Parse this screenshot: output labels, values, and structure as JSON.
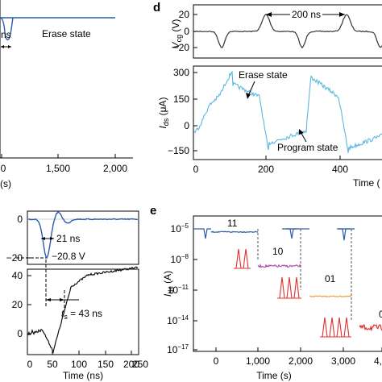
{
  "chart_data": [
    {
      "panel": "",
      "type": "line",
      "xticks": [
        "0",
        "1,500",
        "2,000"
      ],
      "xlabel": "(s)",
      "annotations": {
        "state": "Erase state",
        "width": "ns"
      },
      "colors": {
        "trace": "#2b5ca8"
      }
    },
    {
      "panel": "d",
      "type": "line",
      "top": {
        "ylabel_main": "V",
        "ylabel_sub": "cg",
        "ylabel_unit": " (V)",
        "yticks": [
          "20",
          "0",
          "−20"
        ],
        "ylim": [
          -25,
          28
        ],
        "period_label": "200 ns",
        "pulse_times": [
          0,
          200,
          400
        ],
        "color": "#333333"
      },
      "bottom": {
        "ylabel_main": "I",
        "ylabel_sub": "ds",
        "ylabel_unit": " (μA)",
        "yticks": [
          "300",
          "150",
          "0",
          "−150"
        ],
        "ylim": [
          -190,
          330
        ],
        "xticks": [
          "0",
          "200",
          "400"
        ],
        "xlabel": "Time (",
        "erase_label": "Erase state",
        "program_label": "Program state",
        "color": "#5bb8e0"
      }
    },
    {
      "panel": "",
      "type": "line",
      "top": {
        "yticks": [
          "0",
          "−20"
        ],
        "pulse_width_label": "21 ns",
        "min_label": "−20.8 V",
        "color": "#2b5ca8"
      },
      "bottom": {
        "yticks": [
          "40",
          "20",
          "0"
        ],
        "xticks": [
          "0",
          "50",
          "100",
          "150",
          "200",
          "250"
        ],
        "xlabel": "Time (ns)",
        "ts_label_main": "t",
        "ts_label_sub": "s",
        "ts_label_value": " = 43 ns"
      }
    },
    {
      "panel": "e",
      "type": "line",
      "ylabel_main": "I",
      "ylabel_sub": "ds",
      "ylabel_unit": " (A)",
      "yticks": [
        {
          "base": "10",
          "exp": "−5"
        },
        {
          "base": "10",
          "exp": "−8"
        },
        {
          "base": "10",
          "exp": "−11"
        },
        {
          "base": "10",
          "exp": "−14"
        },
        {
          "base": "10",
          "exp": "−17"
        }
      ],
      "xticks": [
        "0",
        "1,000",
        "2,000",
        "3,000",
        "4,"
      ],
      "xlabel": "Time (s)",
      "states": [
        {
          "label": "11",
          "log_current": -5.3,
          "color": "#2b5ca8",
          "pulses": 1
        },
        {
          "label": "10",
          "log_current": -8.7,
          "color": "#b050b0",
          "pulses": 2
        },
        {
          "label": "01",
          "log_current": -11.7,
          "color": "#f0a040",
          "pulses": 3
        },
        {
          "label": "0",
          "log_current": -14.8,
          "color": "#e03030",
          "pulses": 4
        }
      ]
    }
  ]
}
